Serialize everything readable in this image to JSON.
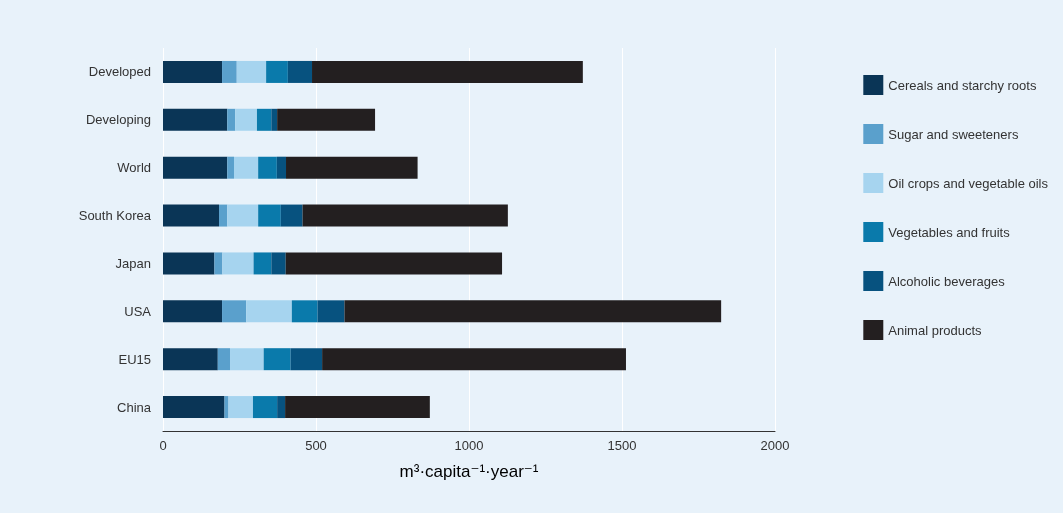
{
  "chart_data": {
    "type": "bar",
    "orientation": "horizontal",
    "stacked": true,
    "xlabel": "m³·capita⁻¹·year⁻¹",
    "categories": [
      "Developed",
      "Developing",
      "World",
      "South Korea",
      "Japan",
      "USA",
      "EU15",
      "China"
    ],
    "series": [
      {
        "name": "Cereals and starchy roots",
        "color": "#0a3556",
        "values": [
          193,
          210,
          210,
          183,
          168,
          193,
          179,
          201
        ]
      },
      {
        "name": "Sugar and sweeteners",
        "color": "#5aa0cc",
        "values": [
          48,
          26,
          22,
          27,
          26,
          79,
          40,
          13
        ]
      },
      {
        "name": "Oil crops and vegetable oils",
        "color": "#a6d4ef",
        "values": [
          96,
          71,
          79,
          101,
          102,
          149,
          110,
          80
        ]
      },
      {
        "name": "Vegetables and fruits",
        "color": "#0a7aab",
        "values": [
          71,
          47,
          61,
          74,
          58,
          84,
          88,
          79
        ]
      },
      {
        "name": "Alcoholic beverages",
        "color": "#07527f",
        "values": [
          79,
          19,
          30,
          71,
          47,
          88,
          103,
          26
        ]
      },
      {
        "name": "Animal products",
        "color": "#231f20",
        "values": [
          885,
          320,
          430,
          671,
          707,
          1231,
          993,
          473
        ]
      }
    ],
    "xlim": [
      0,
      2000
    ],
    "xticks": [
      0,
      500,
      1000,
      1500,
      2000
    ],
    "grid": "x",
    "legend": "right"
  }
}
